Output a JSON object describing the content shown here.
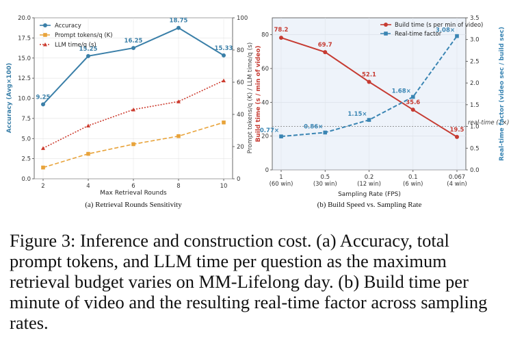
{
  "caption": "Figure 3: Inference and construction cost. (a) Accuracy, total prompt tokens, and LLM time per question as the maximum retrieval budget varies on MM-Lifelong day. (b) Build time per minute of video and the resulting real-time factor across sampling rates.",
  "colors": {
    "accuracy": "#3a7fa8",
    "tokens": "#e8a33a",
    "llm": "#cc3b2e",
    "build": "#c63b32",
    "rtf": "#3a85b3",
    "shade": "#eef3fa"
  },
  "chart_data": [
    {
      "type": "line",
      "subtitle": "(a) Retrieval Rounds Sensitivity",
      "xlabel": "Max Retrieval Rounds",
      "ylabel_left": "Accuracy (Avg×100)",
      "ylabel_right": "Prompt tokens/q (K)  /  LLM time/q (s)",
      "x": [
        2,
        4,
        6,
        8,
        10
      ],
      "x_ticks": [
        "2",
        "4",
        "6",
        "8",
        "10"
      ],
      "ylim_left": [
        0,
        20
      ],
      "yticks_left": [
        "0.0",
        "2.5",
        "5.0",
        "7.5",
        "10.0",
        "12.5",
        "15.0",
        "17.5",
        "20.0"
      ],
      "ylim_right": [
        0,
        100
      ],
      "yticks_right": [
        "0",
        "20",
        "40",
        "60",
        "80",
        "100"
      ],
      "legend_position": "top-left",
      "series": [
        {
          "name": "Accuracy",
          "axis": "left",
          "style": "solid",
          "marker": "circle",
          "values": [
            9.25,
            15.25,
            16.25,
            18.75,
            15.33
          ],
          "labels": [
            "9.25",
            "15.25",
            "16.25",
            "18.75",
            "15.33"
          ]
        },
        {
          "name": "Prompt tokens/q (K)",
          "axis": "right",
          "style": "dashed",
          "marker": "square",
          "values": [
            7,
            15.5,
            21.5,
            26.5,
            35
          ]
        },
        {
          "name": "LLM time/q (s)",
          "axis": "right",
          "style": "dotted",
          "marker": "triangle",
          "values": [
            19,
            33,
            43,
            48,
            61
          ]
        }
      ]
    },
    {
      "type": "line",
      "subtitle": "(b) Build Speed vs. Sampling Rate",
      "xlabel": "Sampling Rate (FPS)",
      "ylabel_left": "Build time (s / min of video)",
      "ylabel_right": "Real-time factor (video sec / build sec)",
      "x_ticks": [
        "1",
        "0.5",
        "0.2",
        "0.1",
        "0.067"
      ],
      "x_subticks": [
        "(60 win)",
        "(30 win)",
        "(12 win)",
        "(6 win)",
        "(4 win)"
      ],
      "ylim_left": [
        0,
        90
      ],
      "yticks_left": [
        "0",
        "20",
        "40",
        "60",
        "80"
      ],
      "ylim_right": [
        0,
        3.5
      ],
      "yticks_right": [
        "0.0",
        "0.5",
        "1.0",
        "1.5",
        "2.0",
        "2.5",
        "3.0",
        "3.5"
      ],
      "reference_line": {
        "value": 1.0,
        "label": "real-time (1×)"
      },
      "legend_position": "top-right",
      "series": [
        {
          "name": "Build time (s per min of video)",
          "axis": "left",
          "style": "solid",
          "marker": "circle",
          "values": [
            78.2,
            69.7,
            52.1,
            35.6,
            19.5
          ],
          "labels": [
            "78.2",
            "69.7",
            "52.1",
            "35.6",
            "19.5"
          ]
        },
        {
          "name": "Real-time factor",
          "axis": "right",
          "style": "dashed",
          "marker": "square",
          "values": [
            0.77,
            0.86,
            1.15,
            1.68,
            3.08
          ],
          "labels": [
            "0.77×",
            "0.86×",
            "1.15×",
            "1.68×",
            "3.08×"
          ]
        }
      ]
    }
  ]
}
